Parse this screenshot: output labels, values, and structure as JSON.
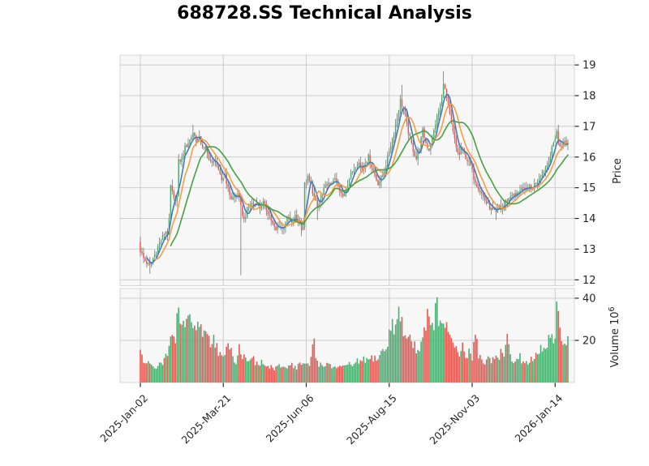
{
  "title": "688728.SS Technical Analysis",
  "chart_data": {
    "type": "candlestick",
    "title": "688728.SS Technical Analysis",
    "legend": "none",
    "grid": true,
    "price_axis": {
      "label": "Price",
      "side": "right",
      "ticks": [
        12,
        13,
        14,
        15,
        16,
        17,
        18,
        19
      ],
      "range": [
        11.81,
        19.32
      ]
    },
    "volume_axis": {
      "label_text": "Volume",
      "unit_mantissa": "10",
      "unit_exponent": "6",
      "side": "right",
      "ticks": [
        20,
        40
      ],
      "range": [
        0,
        44.6
      ]
    },
    "x_axis": {
      "tick_labels": [
        "2025-Jan-02",
        "2025-Mar-21",
        "2025-Jun-06",
        "2025-Aug-15",
        "2025-Nov-03",
        "2026-Jan-14"
      ],
      "tick_days": [
        0,
        52,
        104,
        156,
        208,
        260
      ],
      "n_days": 269
    },
    "moving_averages": [
      {
        "name": "ma-short",
        "window": 5,
        "color": "#4878b8"
      },
      {
        "name": "ma-mid",
        "window": 10,
        "color": "#f89c3d"
      },
      {
        "name": "ma-long",
        "window": 20,
        "color": "#44a244"
      }
    ],
    "style": {
      "up": "#4caf72",
      "down": "#e85951",
      "wick": "#757575",
      "panel_bg": "#f7f7f7",
      "grid": "#cccccc",
      "panel_border": "#d4d4d4",
      "text": "#262626",
      "title_color": "#000000"
    },
    "close_anchors": [
      [
        0,
        12.95
      ],
      [
        2,
        12.7
      ],
      [
        4,
        12.55
      ],
      [
        6,
        12.45
      ],
      [
        8,
        12.7
      ],
      [
        10,
        12.95
      ],
      [
        12,
        13.2
      ],
      [
        14,
        13.4
      ],
      [
        16,
        13.6
      ],
      [
        17,
        13.5
      ],
      [
        18,
        13.9
      ],
      [
        19,
        15.05
      ],
      [
        21,
        14.6
      ],
      [
        23,
        14.7
      ],
      [
        24,
        15.85
      ],
      [
        26,
        15.95
      ],
      [
        28,
        16.3
      ],
      [
        31,
        16.55
      ],
      [
        33,
        16.8
      ],
      [
        35,
        16.55
      ],
      [
        37,
        16.6
      ],
      [
        39,
        16.35
      ],
      [
        41,
        16.2
      ],
      [
        43,
        16.0
      ],
      [
        45,
        15.75
      ],
      [
        47,
        15.95
      ],
      [
        49,
        15.5
      ],
      [
        51,
        15.25
      ],
      [
        53,
        15.45
      ],
      [
        55,
        14.95
      ],
      [
        57,
        14.65
      ],
      [
        59,
        14.7
      ],
      [
        61,
        14.85
      ],
      [
        63,
        14.35
      ],
      [
        65,
        13.95
      ],
      [
        67,
        14.25
      ],
      [
        69,
        14.5
      ],
      [
        71,
        14.4
      ],
      [
        73,
        14.55
      ],
      [
        75,
        14.35
      ],
      [
        77,
        14.5
      ],
      [
        79,
        14.3
      ],
      [
        81,
        14.1
      ],
      [
        83,
        13.8
      ],
      [
        85,
        13.6
      ],
      [
        87,
        13.8
      ],
      [
        89,
        13.65
      ],
      [
        91,
        13.9
      ],
      [
        93,
        14.0
      ],
      [
        95,
        13.8
      ],
      [
        97,
        14.05
      ],
      [
        99,
        13.9
      ],
      [
        101,
        13.7
      ],
      [
        102,
        13.75
      ],
      [
        103,
        15.1
      ],
      [
        105,
        15.3
      ],
      [
        107,
        15.1
      ],
      [
        109,
        14.65
      ],
      [
        111,
        14.35
      ],
      [
        113,
        14.6
      ],
      [
        115,
        14.9
      ],
      [
        117,
        15.15
      ],
      [
        119,
        15.05
      ],
      [
        121,
        15.3
      ],
      [
        123,
        15.15
      ],
      [
        125,
        14.85
      ],
      [
        127,
        14.7
      ],
      [
        129,
        15.0
      ],
      [
        131,
        15.3
      ],
      [
        133,
        15.55
      ],
      [
        135,
        15.75
      ],
      [
        137,
        15.8
      ],
      [
        139,
        15.6
      ],
      [
        141,
        15.85
      ],
      [
        143,
        16.0
      ],
      [
        145,
        15.7
      ],
      [
        147,
        15.4
      ],
      [
        149,
        15.15
      ],
      [
        151,
        15.3
      ],
      [
        153,
        15.6
      ],
      [
        155,
        15.95
      ],
      [
        157,
        16.4
      ],
      [
        159,
        16.8
      ],
      [
        161,
        17.3
      ],
      [
        163,
        17.85
      ],
      [
        165,
        17.55
      ],
      [
        167,
        17.05
      ],
      [
        169,
        16.6
      ],
      [
        171,
        16.25
      ],
      [
        173,
        15.95
      ],
      [
        175,
        16.35
      ],
      [
        177,
        16.85
      ],
      [
        179,
        16.45
      ],
      [
        181,
        16.25
      ],
      [
        183,
        16.6
      ],
      [
        185,
        17.1
      ],
      [
        187,
        17.5
      ],
      [
        189,
        17.9
      ],
      [
        190,
        18.45
      ],
      [
        192,
        17.9
      ],
      [
        194,
        17.35
      ],
      [
        196,
        16.8
      ],
      [
        198,
        16.3
      ],
      [
        200,
        16.05
      ],
      [
        201,
        16.35
      ],
      [
        203,
        16.1
      ],
      [
        205,
        15.9
      ],
      [
        207,
        15.7
      ],
      [
        209,
        15.35
      ],
      [
        211,
        15.1
      ],
      [
        213,
        14.9
      ],
      [
        215,
        14.7
      ],
      [
        217,
        14.5
      ],
      [
        219,
        14.35
      ],
      [
        221,
        14.25
      ],
      [
        223,
        14.15
      ],
      [
        225,
        14.4
      ],
      [
        227,
        14.3
      ],
      [
        229,
        14.55
      ],
      [
        231,
        14.65
      ],
      [
        233,
        14.8
      ],
      [
        235,
        14.7
      ],
      [
        237,
        14.9
      ],
      [
        239,
        15.0
      ],
      [
        241,
        14.85
      ],
      [
        243,
        15.05
      ],
      [
        245,
        14.95
      ],
      [
        247,
        15.1
      ],
      [
        249,
        15.25
      ],
      [
        251,
        15.45
      ],
      [
        253,
        15.6
      ],
      [
        255,
        15.75
      ],
      [
        257,
        16.05
      ],
      [
        259,
        16.45
      ],
      [
        261,
        16.85
      ],
      [
        262,
        16.4
      ],
      [
        264,
        16.35
      ],
      [
        266,
        16.5
      ],
      [
        268,
        16.45
      ]
    ],
    "volume_anchors": [
      [
        0,
        15
      ],
      [
        2,
        9
      ],
      [
        4,
        10
      ],
      [
        6,
        8
      ],
      [
        8,
        9
      ],
      [
        10,
        7
      ],
      [
        12,
        9
      ],
      [
        14,
        8
      ],
      [
        16,
        12
      ],
      [
        18,
        16
      ],
      [
        20,
        24
      ],
      [
        22,
        18
      ],
      [
        24,
        41
      ],
      [
        25,
        28
      ],
      [
        26,
        30
      ],
      [
        28,
        26
      ],
      [
        30,
        33
      ],
      [
        32,
        29
      ],
      [
        34,
        25
      ],
      [
        36,
        31
      ],
      [
        38,
        24
      ],
      [
        40,
        27
      ],
      [
        42,
        21
      ],
      [
        44,
        19
      ],
      [
        46,
        23
      ],
      [
        48,
        17
      ],
      [
        50,
        13
      ],
      [
        52,
        11
      ],
      [
        54,
        15
      ],
      [
        56,
        19
      ],
      [
        58,
        13
      ],
      [
        60,
        10
      ],
      [
        62,
        17
      ],
      [
        64,
        13
      ],
      [
        66,
        11
      ],
      [
        68,
        12
      ],
      [
        70,
        13
      ],
      [
        72,
        9
      ],
      [
        74,
        8
      ],
      [
        76,
        10
      ],
      [
        78,
        8
      ],
      [
        80,
        7
      ],
      [
        82,
        8
      ],
      [
        84,
        6
      ],
      [
        86,
        7
      ],
      [
        88,
        8
      ],
      [
        90,
        7
      ],
      [
        92,
        8
      ],
      [
        94,
        9
      ],
      [
        96,
        8
      ],
      [
        98,
        7
      ],
      [
        100,
        9
      ],
      [
        102,
        9
      ],
      [
        104,
        8
      ],
      [
        106,
        8
      ],
      [
        109,
        21
      ],
      [
        110,
        12
      ],
      [
        112,
        9
      ],
      [
        114,
        8
      ],
      [
        116,
        9
      ],
      [
        118,
        8
      ],
      [
        120,
        7
      ],
      [
        122,
        8
      ],
      [
        124,
        7
      ],
      [
        126,
        8
      ],
      [
        128,
        7
      ],
      [
        130,
        8
      ],
      [
        132,
        9
      ],
      [
        134,
        8
      ],
      [
        136,
        10
      ],
      [
        138,
        9
      ],
      [
        140,
        12
      ],
      [
        142,
        10
      ],
      [
        144,
        11
      ],
      [
        146,
        12
      ],
      [
        148,
        11
      ],
      [
        150,
        13
      ],
      [
        152,
        15
      ],
      [
        154,
        16
      ],
      [
        156,
        22
      ],
      [
        158,
        30
      ],
      [
        160,
        25
      ],
      [
        162,
        34
      ],
      [
        164,
        27
      ],
      [
        166,
        21
      ],
      [
        168,
        24
      ],
      [
        170,
        19
      ],
      [
        172,
        17
      ],
      [
        174,
        15
      ],
      [
        176,
        20
      ],
      [
        178,
        25
      ],
      [
        180,
        33
      ],
      [
        182,
        24
      ],
      [
        184,
        30
      ],
      [
        186,
        36
      ],
      [
        188,
        27
      ],
      [
        190,
        24
      ],
      [
        192,
        31
      ],
      [
        194,
        21
      ],
      [
        196,
        17
      ],
      [
        198,
        15
      ],
      [
        200,
        13
      ],
      [
        202,
        17
      ],
      [
        204,
        12
      ],
      [
        206,
        14
      ],
      [
        208,
        11
      ],
      [
        210,
        27
      ],
      [
        212,
        13
      ],
      [
        214,
        11
      ],
      [
        216,
        9
      ],
      [
        218,
        12
      ],
      [
        220,
        10
      ],
      [
        222,
        13
      ],
      [
        224,
        11
      ],
      [
        226,
        15
      ],
      [
        228,
        11
      ],
      [
        230,
        20
      ],
      [
        232,
        13
      ],
      [
        234,
        11
      ],
      [
        236,
        10
      ],
      [
        238,
        12
      ],
      [
        240,
        10
      ],
      [
        242,
        9
      ],
      [
        244,
        11
      ],
      [
        246,
        10
      ],
      [
        248,
        12
      ],
      [
        250,
        14
      ],
      [
        252,
        17
      ],
      [
        254,
        15
      ],
      [
        256,
        20
      ],
      [
        258,
        22
      ],
      [
        260,
        18
      ],
      [
        261,
        35
      ],
      [
        262,
        29
      ],
      [
        264,
        18
      ],
      [
        266,
        22
      ],
      [
        268,
        20
      ]
    ],
    "wick_events": [
      {
        "day": 6,
        "low": 12.2
      },
      {
        "day": 33,
        "high": 17.05
      },
      {
        "day": 63,
        "low": 12.15
      },
      {
        "day": 111,
        "low": 13.95
      },
      {
        "day": 164,
        "high": 18.35
      },
      {
        "day": 190,
        "high": 18.8
      },
      {
        "day": 223,
        "low": 13.95
      },
      {
        "day": 262,
        "high": 17.05
      }
    ]
  }
}
